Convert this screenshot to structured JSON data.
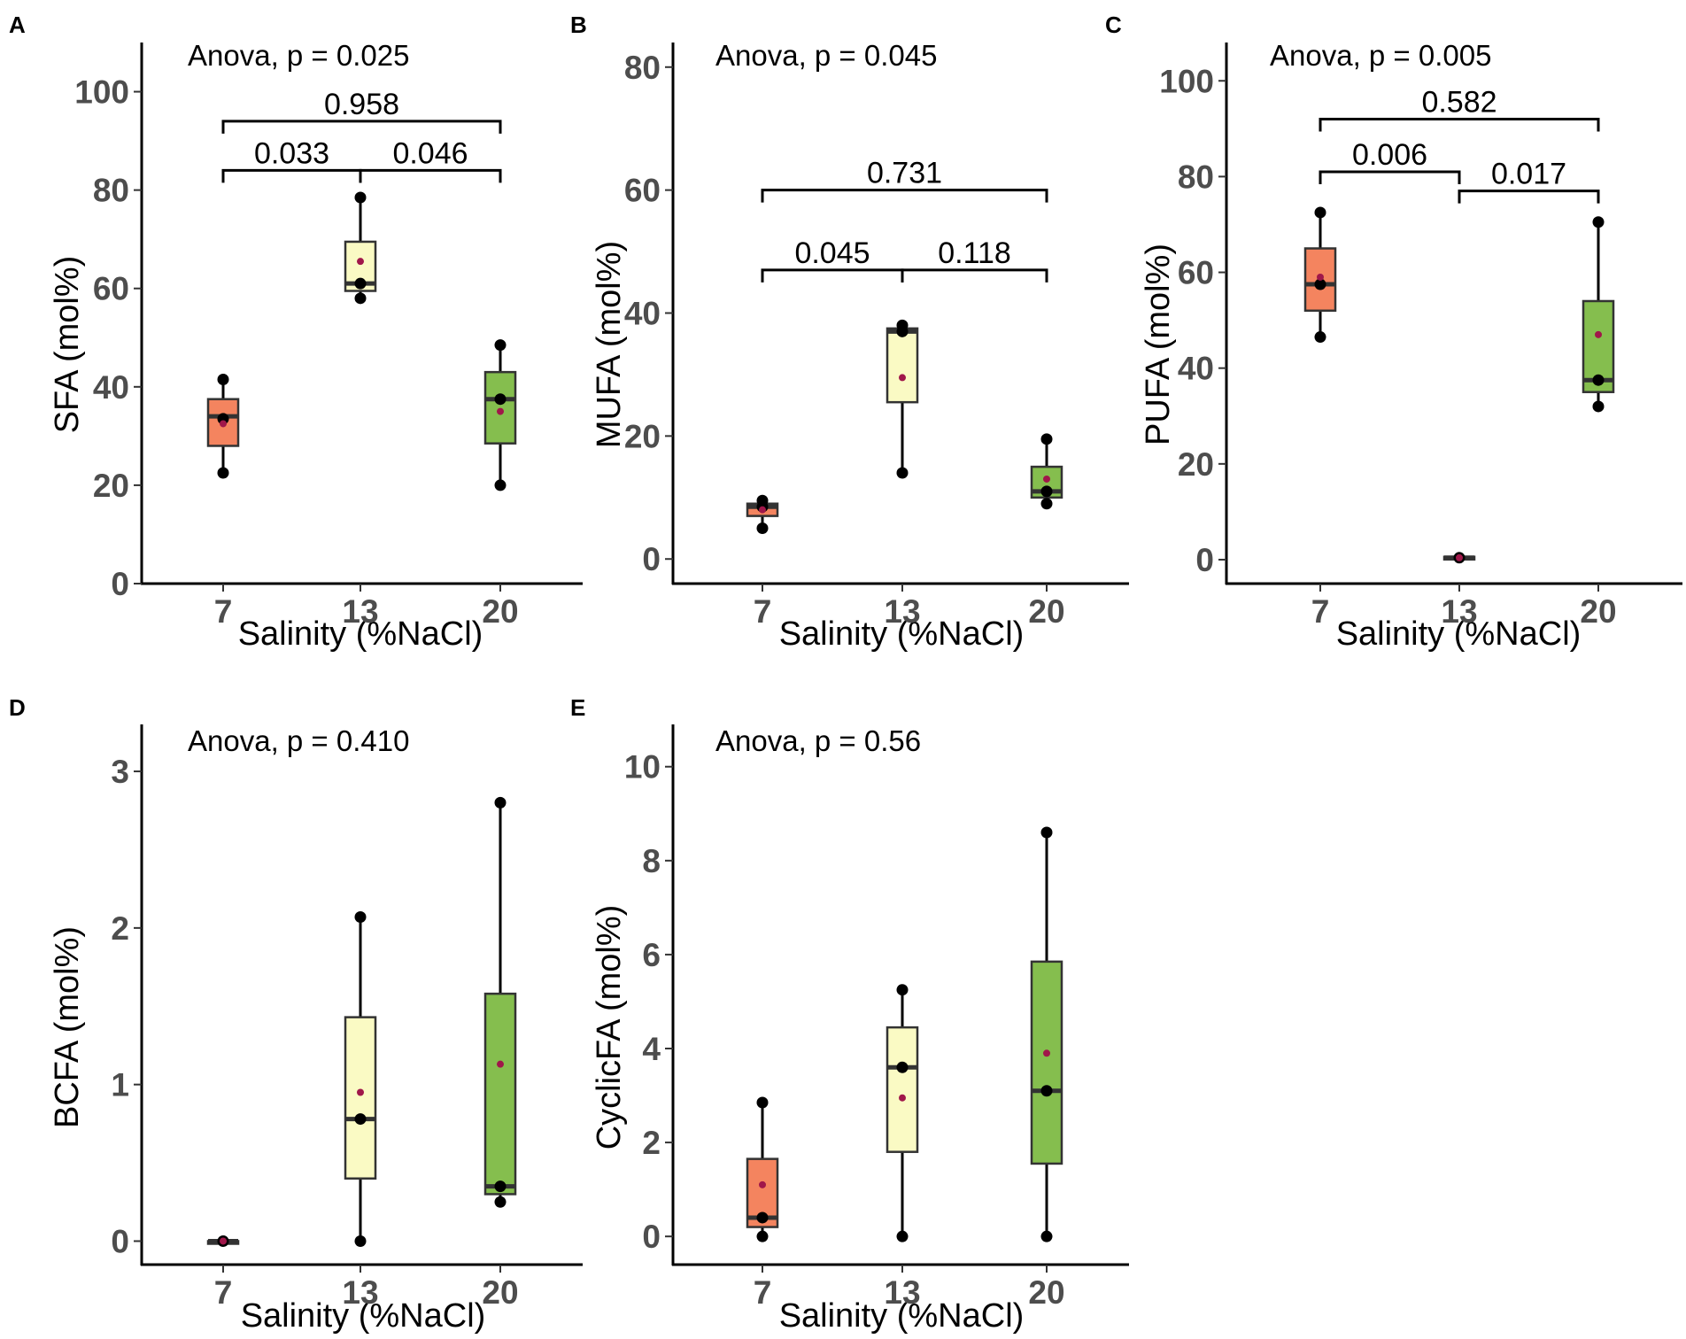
{
  "figure": {
    "colors": {
      "7": "#f4845f",
      "13": "#fafac4",
      "20": "#85be4e",
      "mean": "#a0174a",
      "points": "#000000"
    }
  },
  "chart_data": [
    {
      "panel": "A",
      "type": "box",
      "anova": "Anova, p = 0.025",
      "xlabel": "Salinity (%NaCl)",
      "ylabel": "SFA (mol%)",
      "categories": [
        "7",
        "13",
        "20"
      ],
      "ylim": [
        0,
        110
      ],
      "yticks": [
        0,
        20,
        40,
        60,
        80,
        100
      ],
      "boxes": [
        {
          "cat": "7",
          "q1": 28,
          "median": 34,
          "q3": 37.5,
          "wmin": 22.5,
          "wmax": 41.5,
          "mean": 32.5,
          "points": [
            22.5,
            33.5,
            41.5
          ]
        },
        {
          "cat": "13",
          "q1": 59.5,
          "median": 61,
          "q3": 69.5,
          "wmin": 58,
          "wmax": 78.5,
          "mean": 65.5,
          "points": [
            58,
            61,
            78.5
          ]
        },
        {
          "cat": "20",
          "q1": 28.5,
          "median": 37.5,
          "q3": 43,
          "wmin": 20,
          "wmax": 48.5,
          "mean": 35,
          "points": [
            20,
            37.5,
            48.5
          ]
        }
      ],
      "comparisons": [
        {
          "from": "7",
          "to": "20",
          "y": 94,
          "label": "0.958"
        },
        {
          "from": "7",
          "to": "13",
          "y": 84,
          "label": "0.033"
        },
        {
          "from": "13",
          "to": "20",
          "y": 84,
          "label": "0.046"
        }
      ]
    },
    {
      "panel": "B",
      "type": "box",
      "anova": "Anova, p = 0.045",
      "xlabel": "Salinity (%NaCl)",
      "ylabel": "MUFA (mol%)",
      "categories": [
        "7",
        "13",
        "20"
      ],
      "ylim": [
        -4,
        84
      ],
      "yticks": [
        0,
        20,
        40,
        60,
        80
      ],
      "boxes": [
        {
          "cat": "7",
          "q1": 7,
          "median": 8.5,
          "q3": 9,
          "wmin": 5,
          "wmax": 9.5,
          "mean": 8,
          "points": [
            5,
            8.5,
            9.5
          ]
        },
        {
          "cat": "13",
          "q1": 25.5,
          "median": 37,
          "q3": 37.5,
          "wmin": 14,
          "wmax": 38,
          "mean": 29.5,
          "points": [
            14,
            37,
            38
          ]
        },
        {
          "cat": "20",
          "q1": 10,
          "median": 11,
          "q3": 15,
          "wmin": 9,
          "wmax": 19.5,
          "mean": 13,
          "points": [
            9,
            11,
            19.5
          ]
        }
      ],
      "comparisons": [
        {
          "from": "7",
          "to": "20",
          "y": 60,
          "label": "0.731"
        },
        {
          "from": "7",
          "to": "13",
          "y": 47,
          "label": "0.045"
        },
        {
          "from": "13",
          "to": "20",
          "y": 47,
          "label": "0.118"
        }
      ]
    },
    {
      "panel": "C",
      "type": "box",
      "anova": "Anova, p = 0.005",
      "xlabel": "Salinity (%NaCl)",
      "ylabel": "PUFA (mol%)",
      "categories": [
        "7",
        "13",
        "20"
      ],
      "ylim": [
        -5,
        108
      ],
      "yticks": [
        0,
        20,
        40,
        60,
        80,
        100
      ],
      "boxes": [
        {
          "cat": "7",
          "q1": 52,
          "median": 57.5,
          "q3": 65,
          "wmin": 46.5,
          "wmax": 72.5,
          "mean": 59,
          "points": [
            46.5,
            57.5,
            72.5
          ]
        },
        {
          "cat": "13",
          "q1": 0.2,
          "median": 0.4,
          "q3": 0.6,
          "wmin": 0.2,
          "wmax": 0.6,
          "mean": 0.4,
          "points": [
            0.4
          ]
        },
        {
          "cat": "20",
          "q1": 35,
          "median": 37.5,
          "q3": 54,
          "wmin": 32,
          "wmax": 70.5,
          "mean": 47,
          "points": [
            32,
            37.5,
            70.5
          ]
        }
      ],
      "comparisons": [
        {
          "from": "7",
          "to": "20",
          "y": 92,
          "label": "0.582"
        },
        {
          "from": "7",
          "to": "13",
          "y": 81,
          "label": "0.006"
        },
        {
          "from": "13",
          "to": "20",
          "y": 77,
          "label": "0.017"
        }
      ]
    },
    {
      "panel": "D",
      "type": "box",
      "anova": "Anova, p = 0.410",
      "xlabel": "Salinity (%NaCl)",
      "ylabel": "BCFA (mol%)",
      "categories": [
        "7",
        "13",
        "20"
      ],
      "ylim": [
        -0.15,
        3.3
      ],
      "yticks": [
        0,
        1,
        2,
        3
      ],
      "boxes": [
        {
          "cat": "7",
          "q1": 0,
          "median": 0,
          "q3": 0,
          "wmin": 0,
          "wmax": 0,
          "mean": 0,
          "points": [
            0
          ]
        },
        {
          "cat": "13",
          "q1": 0.4,
          "median": 0.78,
          "q3": 1.43,
          "wmin": 0,
          "wmax": 2.07,
          "mean": 0.95,
          "points": [
            0,
            0.78,
            2.07
          ]
        },
        {
          "cat": "20",
          "q1": 0.3,
          "median": 0.35,
          "q3": 1.58,
          "wmin": 0.25,
          "wmax": 2.8,
          "mean": 1.13,
          "points": [
            0.25,
            0.35,
            2.8
          ]
        }
      ],
      "comparisons": []
    },
    {
      "panel": "E",
      "type": "box",
      "anova": "Anova, p =  0.56",
      "xlabel": "Salinity (%NaCl)",
      "ylabel": "CyclicFA (mol%)",
      "categories": [
        "7",
        "13",
        "20"
      ],
      "ylim": [
        -0.6,
        10.9
      ],
      "yticks": [
        0,
        2,
        4,
        6,
        8,
        10
      ],
      "boxes": [
        {
          "cat": "7",
          "q1": 0.2,
          "median": 0.4,
          "q3": 1.65,
          "wmin": 0,
          "wmax": 2.85,
          "mean": 1.1,
          "points": [
            0,
            0.4,
            2.85
          ]
        },
        {
          "cat": "13",
          "q1": 1.8,
          "median": 3.6,
          "q3": 4.45,
          "wmin": 0,
          "wmax": 5.25,
          "mean": 2.95,
          "points": [
            0,
            3.6,
            5.25
          ]
        },
        {
          "cat": "20",
          "q1": 1.55,
          "median": 3.1,
          "q3": 5.85,
          "wmin": 0,
          "wmax": 8.6,
          "mean": 3.9,
          "points": [
            0,
            3.1,
            8.6
          ]
        }
      ],
      "comparisons": []
    }
  ]
}
